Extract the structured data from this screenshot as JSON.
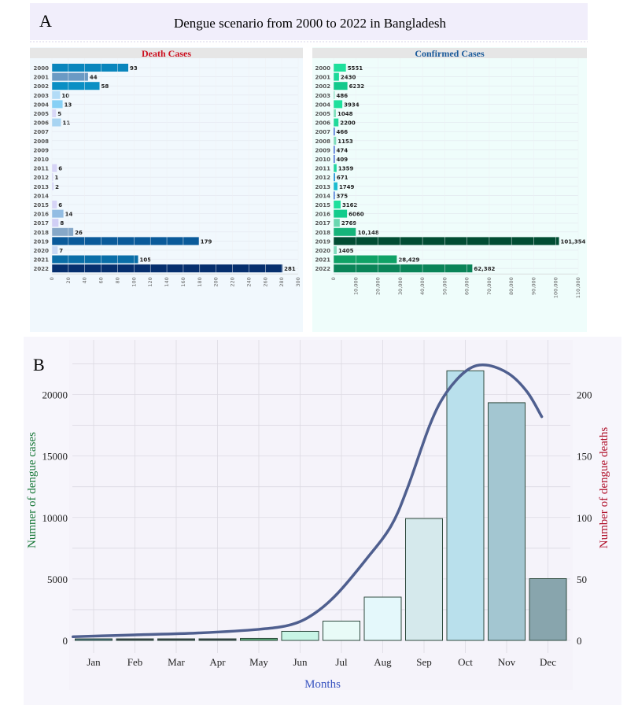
{
  "figure": {
    "panel_a_label": "A",
    "panel_a_title": "Dengue scenario  from 2000 to 2022 in Bangladesh",
    "panel_b_label": "B"
  },
  "chart_data": [
    {
      "type": "bar",
      "orientation": "horizontal",
      "title": "Death Cases",
      "title_color": "#cc1020",
      "categories": [
        "2000",
        "2001",
        "2002",
        "2003",
        "2004",
        "2005",
        "2006",
        "2007",
        "2008",
        "2009",
        "2010",
        "2011",
        "2012",
        "2013",
        "2014",
        "2015",
        "2016",
        "2017",
        "2018",
        "2019",
        "2020",
        "2021",
        "2022"
      ],
      "values": [
        93,
        44,
        58,
        10,
        13,
        5,
        11,
        null,
        null,
        null,
        null,
        6,
        1,
        2,
        null,
        6,
        14,
        8,
        26,
        179,
        7,
        105,
        281
      ],
      "data_labels": [
        "93",
        "44",
        "58",
        "10",
        "13",
        "5",
        "11",
        "",
        "",
        "",
        "",
        "6",
        "1",
        "2",
        "",
        "6",
        "14",
        "8",
        "26",
        "179",
        "7",
        "105",
        "281"
      ],
      "bar_colors": [
        "#0a86bd",
        "#6b9ac4",
        "#0b8fc4",
        "#b3dcf7",
        "#87d0f5",
        "#d8d8f8",
        "#a8d4f2",
        "#fff",
        "#fff",
        "#fff",
        "#fff",
        "#d6d4f7",
        "#d6d4f7",
        "#d6d4f7",
        "#fff",
        "#d6d4f7",
        "#93bde3",
        "#d0cff5",
        "#86a8c8",
        "#0a5a9a",
        "#c8d9f5",
        "#0a6ea8",
        "#062f6e"
      ],
      "xlim": [
        0,
        300
      ],
      "xticks": [
        "0",
        "20",
        "40",
        "60",
        "80",
        "100",
        "120",
        "140",
        "160",
        "180",
        "200",
        "220",
        "240",
        "260",
        "280",
        "300"
      ],
      "grid": true
    },
    {
      "type": "bar",
      "orientation": "horizontal",
      "title": "Confirmed Cases",
      "title_color": "#1a5a9a",
      "categories": [
        "2000",
        "2001",
        "2002",
        "2003",
        "2004",
        "2005",
        "2006",
        "2007",
        "2008",
        "2009",
        "2010",
        "2011",
        "2012",
        "2013",
        "2014",
        "2015",
        "2016",
        "2017",
        "2018",
        "2019",
        "2020",
        "2021",
        "2022"
      ],
      "values": [
        5551,
        2430,
        6232,
        486,
        3934,
        1048,
        2200,
        466,
        1153,
        474,
        409,
        1359,
        671,
        1749,
        375,
        3162,
        6060,
        2769,
        10148,
        101354,
        1405,
        28429,
        62382
      ],
      "data_labels": [
        "5551",
        "2430",
        "6232",
        "486",
        "3934",
        "1048",
        "2200",
        "466",
        "1153",
        "474",
        "409",
        "1359",
        "671",
        "1749",
        "375",
        "3162",
        "6060",
        "2769",
        "10,148",
        "101,354",
        "1405",
        "28,429",
        "62,382"
      ],
      "bar_colors": [
        "#1ee09c",
        "#1cd99a",
        "#12c98c",
        "#8ee6c6",
        "#1ee09c",
        "#7ee0bc",
        "#22d99a",
        "#1f4fd0",
        "#7edcbc",
        "#1f4fd0",
        "#1f4fd0",
        "#22d5a0",
        "#1a8fd8",
        "#1bbcd0",
        "#1f5ad0",
        "#1ee09c",
        "#12cc8c",
        "#6ad8b0",
        "#16b47a",
        "#014d33",
        "#7fdcbc",
        "#0fa266",
        "#0a8458"
      ],
      "xlim": [
        0,
        110000
      ],
      "xticks": [
        "0",
        "10,000",
        "20,000",
        "30,000",
        "40,000",
        "50,000",
        "60,000",
        "70,000",
        "80,000",
        "90,000",
        "100,000",
        "110,000"
      ],
      "grid": true
    },
    {
      "type": "bar+line",
      "categories": [
        "Jan",
        "Feb",
        "Mar",
        "Apr",
        "May",
        "Jun",
        "Jul",
        "Aug",
        "Sep",
        "Oct",
        "Nov",
        "Dec"
      ],
      "bar_series": {
        "axis": "left",
        "values": [
          126,
          20,
          20,
          23,
          163,
          737,
          1571,
          3521,
          9911,
          21932,
          19334,
          5024
        ],
        "colors": [
          "#4a7a8a",
          "#3a3f4a",
          "#3a3f4a",
          "#3a3f4a",
          "#5aa878",
          "#c8f5e6",
          "#e8fbf7",
          "#e4f8fb",
          "#d5e9ec",
          "#b9e0ec",
          "#a3c6d1",
          "#88a5ad"
        ]
      },
      "line_series": {
        "axis": "right",
        "color": "#4f5f8f",
        "smooth": true,
        "points": [
          [
            0.5,
            3
          ],
          [
            2,
            4.5
          ],
          [
            3.5,
            6
          ],
          [
            5,
            9
          ],
          [
            5.8,
            13
          ],
          [
            6.35,
            22
          ],
          [
            6.9,
            38
          ],
          [
            7.6,
            66
          ],
          [
            8.2,
            93
          ],
          [
            8.6,
            124
          ],
          [
            9.15,
            176
          ],
          [
            9.55,
            202
          ],
          [
            10.05,
            220
          ],
          [
            10.5,
            224
          ],
          [
            11.05,
            217
          ],
          [
            11.5,
            202
          ],
          [
            11.85,
            182
          ]
        ]
      },
      "xlabel": "Months",
      "xlabel_color": "#3a55c0",
      "ylabel_left": "Numner of dengue cases",
      "ylabel_left_color": "#1a7a3a",
      "ylabel_right": "Number of dengue deaths",
      "ylabel_right_color": "#b0102a",
      "ylim_left": [
        0,
        23000
      ],
      "ylim_right": [
        0,
        230
      ],
      "yticks_left": [
        "0",
        "5000",
        "10000",
        "15000",
        "20000"
      ],
      "yticks_right": [
        "0",
        "50",
        "100",
        "150",
        "200"
      ],
      "grid": true
    }
  ]
}
